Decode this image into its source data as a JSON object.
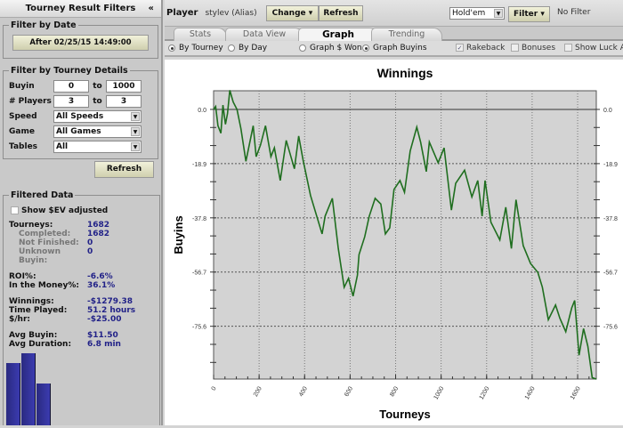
{
  "sidebar": {
    "title": "Tourney Result Filters",
    "collapse_icon": "double-chevron-left-icon",
    "date": {
      "legend": "Filter by Date",
      "button": "After 02/25/15 14:49:00"
    },
    "details": {
      "legend": "Filter by Tourney Details",
      "buyin_label": "Buyin",
      "buyin_from": "0",
      "buyin_to": "1000",
      "to": "to",
      "players_label": "# Players",
      "players_from": "3",
      "players_to": "3",
      "speed_label": "Speed",
      "speed_value": "All Speeds",
      "game_label": "Game",
      "game_value": "All Games",
      "tables_label": "Tables",
      "tables_value": "All"
    },
    "refresh": "Refresh",
    "filtered": {
      "legend": "Filtered Data",
      "ev_label": "Show $EV adjusted",
      "ev_checked": false,
      "tourneys_k": "Tourneys:",
      "tourneys_v": "1682",
      "completed_k": "Completed:",
      "completed_v": "1682",
      "notfinished_k": "Not Finished:",
      "notfinished_v": "0",
      "unknown_k": "Unknown Buyin:",
      "unknown_v": "0",
      "roi_k": "ROI%:",
      "roi_v": "-6.6%",
      "itm_k": "In the Money%:",
      "itm_v": "36.1%",
      "win_k": "Winnings:",
      "win_v": "-$1279.38",
      "time_k": "Time Played:",
      "time_v": "51.2 hours",
      "hr_k": "$/hr:",
      "hr_v": "-$25.00",
      "avgb_k": "Avg Buyin:",
      "avgb_v": "$11.50",
      "avgd_k": "Avg Duration:",
      "avgd_v": "6.8 min"
    },
    "histogram_relative": [
      70,
      81,
      47
    ]
  },
  "toolbar": {
    "player_label": "Player",
    "player_value": "stylev (Alias)",
    "change": "Change",
    "refresh": "Refresh",
    "game": "Hold'em",
    "filter": "Filter",
    "filter_status": "No Filter"
  },
  "tabs": [
    {
      "label": "Stats"
    },
    {
      "label": "Data View"
    },
    {
      "label": "Graph",
      "active": true
    },
    {
      "label": "Trending"
    }
  ],
  "options": {
    "by_tourney": "By Tourney",
    "by_day": "By Day",
    "graph_won": "Graph $ Won",
    "graph_buyins": "Graph Buyins",
    "rakeback": "Rakeback",
    "rakeback_checked": true,
    "bonuses": "Bonuses",
    "luck": "Show Luck Ad"
  },
  "colors": {
    "line": "#1f6e1f",
    "plot_bg": "#d3d3d3",
    "hist": "#2f2f99"
  },
  "chart_data": {
    "type": "line",
    "title": "Winnings",
    "xlabel": "Tourneys",
    "ylabel": "Buyins",
    "xlim": [
      0,
      1682
    ],
    "ylim": [
      -94,
      6.5
    ],
    "xticks": [
      0,
      200,
      400,
      600,
      800,
      1000,
      1200,
      1400,
      1600
    ],
    "yticks": [
      0.0,
      -18.9,
      -37.8,
      -56.7,
      -75.6
    ],
    "ytick_labels": [
      "0.0",
      "-18.9",
      "-37.8",
      "-56.7",
      "-75.6"
    ],
    "grid": true,
    "x": [
      0,
      9,
      19,
      32,
      41,
      52,
      61,
      71,
      86,
      103,
      120,
      142,
      174,
      187,
      206,
      228,
      252,
      267,
      293,
      319,
      355,
      374,
      393,
      426,
      477,
      490,
      522,
      548,
      574,
      593,
      613,
      632,
      639,
      664,
      684,
      710,
      735,
      755,
      774,
      793,
      819,
      839,
      864,
      893,
      910,
      935,
      948,
      987,
      1013,
      1045,
      1064,
      1103,
      1135,
      1161,
      1180,
      1193,
      1219,
      1258,
      1284,
      1309,
      1329,
      1361,
      1393,
      1425,
      1445,
      1471,
      1503,
      1522,
      1548,
      1574,
      1587,
      1606,
      1626,
      1645,
      1664,
      1682
    ],
    "y": [
      0,
      1.0,
      -5.7,
      -8.3,
      1.5,
      -5.2,
      -1.5,
      6.7,
      2.6,
      0,
      -6.7,
      -18.1,
      -5.7,
      -16.5,
      -12.4,
      -5.7,
      -16.5,
      -13.4,
      -24.8,
      -10.8,
      -20.7,
      -9.3,
      -17.6,
      -30,
      -43.4,
      -37.2,
      -31,
      -48.5,
      -62,
      -58.9,
      -65.1,
      -57.8,
      -50.6,
      -44.4,
      -37.2,
      -31,
      -33,
      -43.4,
      -41.3,
      -27.9,
      -24.8,
      -28.9,
      -14.5,
      -6.2,
      -11.4,
      -21.7,
      -11.4,
      -18.6,
      -13.4,
      -35.1,
      -25.8,
      -21.2,
      -30.5,
      -24.8,
      -37.2,
      -24.8,
      -39.3,
      -45.5,
      -34.1,
      -48.5,
      -31.5,
      -47.5,
      -53.7,
      -56.8,
      -62,
      -73.3,
      -68.2,
      -72.8,
      -77.5,
      -69.2,
      -66.6,
      -85.7,
      -76.4,
      -82.6,
      -93.5,
      -94
    ]
  }
}
